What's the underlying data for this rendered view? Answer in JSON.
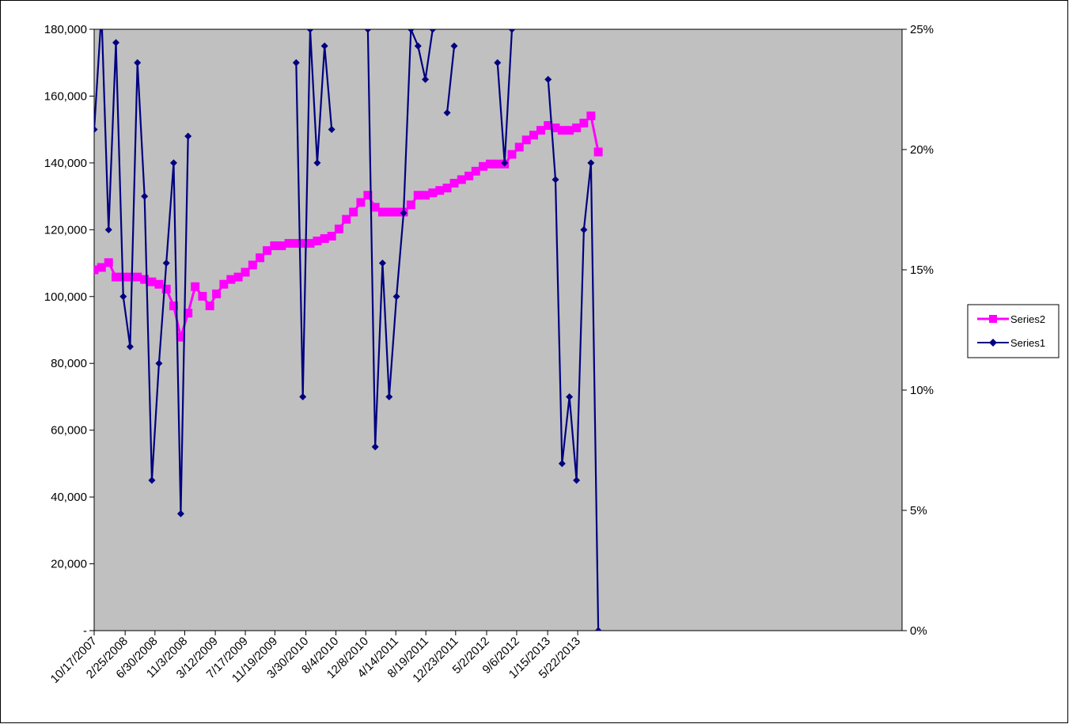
{
  "chart_data": {
    "type": "line",
    "x": [
      "10/17/2007",
      "11/17/2007",
      "12/17/2007",
      "1/17/2008",
      "2/17/2008",
      "3/17/2008",
      "4/17/2008",
      "5/17/2008",
      "6/17/2008",
      "7/17/2008",
      "8/17/2008",
      "9/17/2008",
      "10/17/2008",
      "11/17/2008",
      "12/17/2008",
      "1/17/2009",
      "2/17/2009",
      "3/17/2009",
      "4/17/2009",
      "5/17/2009",
      "6/17/2009",
      "7/17/2009",
      "8/17/2009",
      "9/17/2009",
      "10/17/2009",
      "11/17/2009",
      "12/17/2009",
      "1/17/2010",
      "2/17/2010",
      "3/17/2010",
      "4/17/2010",
      "5/17/2010",
      "6/17/2010",
      "7/17/2010",
      "8/17/2010",
      "9/17/2010",
      "10/17/2010",
      "11/17/2010",
      "12/17/2010",
      "1/17/2011",
      "2/17/2011",
      "3/17/2011",
      "4/17/2011",
      "5/17/2011",
      "6/17/2011",
      "7/17/2011",
      "8/17/2011",
      "9/17/2011",
      "10/17/2011",
      "11/17/2011",
      "12/17/2011",
      "1/17/2012",
      "2/17/2012",
      "3/17/2012",
      "4/17/2012",
      "5/17/2012",
      "6/17/2012",
      "7/17/2012",
      "8/17/2012",
      "9/17/2012",
      "10/17/2012",
      "11/17/2012",
      "12/17/2012",
      "1/17/2013",
      "2/17/2013",
      "3/17/2013",
      "4/17/2013",
      "5/17/2013",
      "6/17/2013",
      "7/17/2013",
      "8/17/2013"
    ],
    "series": [
      {
        "name": "Series2",
        "color": "#ff00ff",
        "axis": "y2",
        "marker": "square",
        "values": [
          15.0,
          15.1,
          15.3,
          14.7,
          14.7,
          14.7,
          14.7,
          14.6,
          14.5,
          14.4,
          14.2,
          13.5,
          12.2,
          13.2,
          14.3,
          13.9,
          13.5,
          14.0,
          14.4,
          14.6,
          14.7,
          14.9,
          15.2,
          15.5,
          15.8,
          16.0,
          16.0,
          16.1,
          16.1,
          16.1,
          16.1,
          16.2,
          16.3,
          16.4,
          16.7,
          17.1,
          17.4,
          17.8,
          18.1,
          17.6,
          17.4,
          17.4,
          17.4,
          17.4,
          17.7,
          18.1,
          18.1,
          18.2,
          18.3,
          18.4,
          18.6,
          18.75,
          18.9,
          19.1,
          19.3,
          19.4,
          19.4,
          19.4,
          19.8,
          20.1,
          20.4,
          20.6,
          20.8,
          21.0,
          20.9,
          20.8,
          20.8,
          20.9,
          21.1,
          21.4,
          19.9
        ]
      },
      {
        "name": "Series1",
        "color": "#000080",
        "axis": "y",
        "marker": "diamond",
        "values": [
          150000,
          185000,
          120000,
          176000,
          100000,
          85000,
          170000,
          130000,
          45000,
          80000,
          110000,
          140000,
          35000,
          148000,
          null,
          null,
          null,
          null,
          null,
          null,
          null,
          null,
          null,
          null,
          null,
          null,
          null,
          null,
          170000,
          70000,
          180000,
          140000,
          175000,
          150000,
          null,
          null,
          null,
          null,
          180000,
          55000,
          110000,
          70000,
          100000,
          125000,
          180000,
          175000,
          165000,
          180000,
          null,
          155000,
          175000,
          null,
          null,
          null,
          null,
          null,
          170000,
          140000,
          180000,
          null,
          null,
          null,
          null,
          165000,
          135000,
          50000,
          70000,
          45000,
          120000,
          140000,
          0
        ]
      }
    ],
    "xlim": [
      "10/17/2007",
      "2/21/2017"
    ],
    "xticks": [
      "10/17/2007",
      "2/25/2008",
      "6/30/2008",
      "11/3/2008",
      "3/12/2009",
      "7/17/2009",
      "11/19/2009",
      "3/30/2010",
      "8/4/2010",
      "12/8/2010",
      "4/14/2011",
      "8/19/2011",
      "12/23/2011",
      "5/2/2012",
      "9/6/2012",
      "1/15/2013",
      "5/22/2013"
    ],
    "ylim": [
      0,
      180000
    ],
    "yticks": [
      {
        "value": 0,
        "label": "-"
      },
      {
        "value": 20000,
        "label": "20,000"
      },
      {
        "value": 40000,
        "label": "40,000"
      },
      {
        "value": 60000,
        "label": "60,000"
      },
      {
        "value": 80000,
        "label": "80,000"
      },
      {
        "value": 100000,
        "label": "100,000"
      },
      {
        "value": 120000,
        "label": "120,000"
      },
      {
        "value": 140000,
        "label": "140,000"
      },
      {
        "value": 160000,
        "label": "160,000"
      },
      {
        "value": 180000,
        "label": "180,000"
      }
    ],
    "y2lim": [
      0,
      25
    ],
    "y2ticks": [
      {
        "value": 0,
        "label": "0%"
      },
      {
        "value": 5,
        "label": "5%"
      },
      {
        "value": 10,
        "label": "10%"
      },
      {
        "value": 15,
        "label": "15%"
      },
      {
        "value": 20,
        "label": "20%"
      },
      {
        "value": 25,
        "label": "25%"
      }
    ],
    "legend": "right",
    "plot_background": "#c0c0c0"
  }
}
